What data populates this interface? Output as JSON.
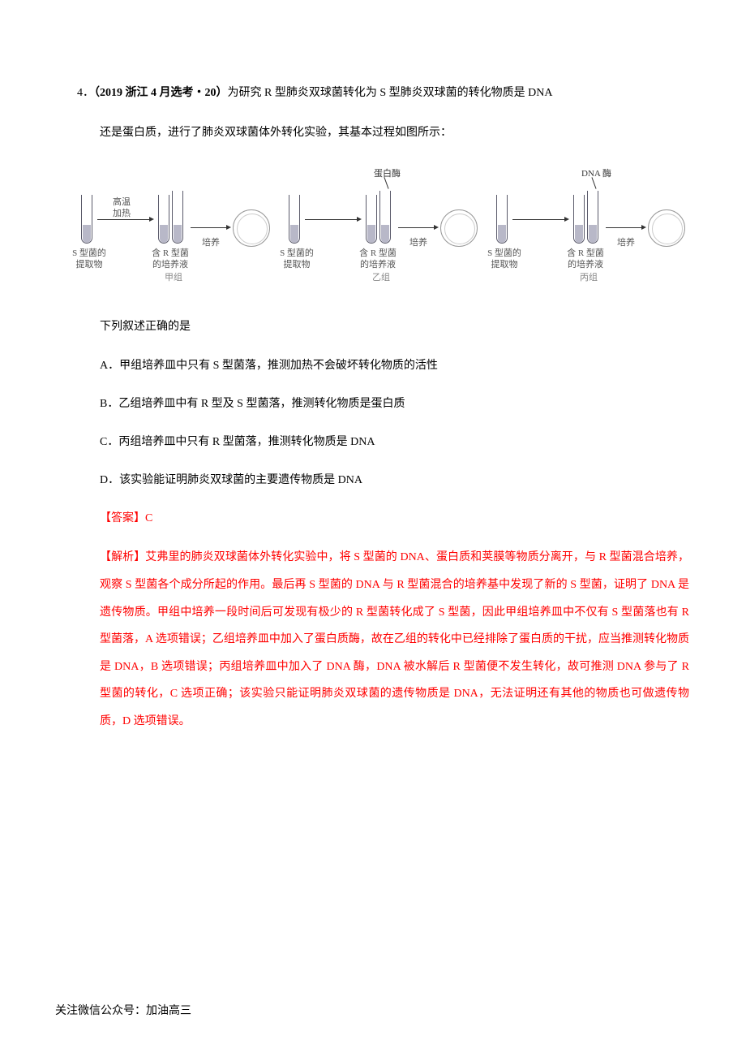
{
  "question": {
    "number": "4．",
    "source": "（2019 浙江 4 月选考・20）",
    "text_part1": "为研究 R 型肺炎双球菌转化为 S 型肺炎双球菌的转化物质是 DNA",
    "text_part2": "还是蛋白质，进行了肺炎双球菌体外转化实验，其基本过程如图所示："
  },
  "diagram": {
    "groups": [
      {
        "extract_label": "S 型菌的\n提取物",
        "heat_label": "高温\n加热",
        "medium_label": "含 R 型菌\n的培养液",
        "culture_label": "培养",
        "group_name": "甲组",
        "enzyme": "",
        "show_enzyme": false
      },
      {
        "extract_label": "S 型菌的\n提取物",
        "heat_label": "",
        "medium_label": "含 R 型菌\n的培养液",
        "culture_label": "培养",
        "group_name": "乙组",
        "enzyme": "蛋白酶",
        "show_enzyme": true
      },
      {
        "extract_label": "S 型菌的\n提取物",
        "heat_label": "",
        "medium_label": "含 R 型菌\n的培养液",
        "culture_label": "培养",
        "group_name": "丙组",
        "enzyme": "DNA 酶",
        "show_enzyme": true
      }
    ]
  },
  "stem": "下列叙述正确的是",
  "options": {
    "A": "A．甲组培养皿中只有 S 型菌落，推测加热不会破坏转化物质的活性",
    "B": "B．乙组培养皿中有 R 型及 S 型菌落，推测转化物质是蛋白质",
    "C": "C．丙组培养皿中只有 R 型菌落，推测转化物质是 DNA",
    "D": "D．该实验能证明肺炎双球菌的主要遗传物质是 DNA"
  },
  "answer": "【答案】C",
  "analysis": "【解析】艾弗里的肺炎双球菌体外转化实验中，将 S 型菌的 DNA、蛋白质和荚膜等物质分离开，与 R 型菌混合培养，观察 S 型菌各个成分所起的作用。最后再 S 型菌的 DNA 与 R 型菌混合的培养基中发现了新的 S 型菌，证明了 DNA 是遗传物质。甲组中培养一段时间后可发现有极少的 R 型菌转化成了 S 型菌，因此甲组培养皿中不仅有 S 型菌落也有 R 型菌落，A 选项错误；乙组培养皿中加入了蛋白质酶，故在乙组的转化中已经排除了蛋白质的干扰，应当推测转化物质是 DNA，B 选项错误；丙组培养皿中加入了 DNA 酶，DNA 被水解后 R 型菌便不发生转化，故可推测 DNA 参与了 R 型菌的转化，C 选项正确；该实验只能证明肺炎双球菌的遗传物质是 DNA，无法证明还有其他的物质也可做遗传物质，D 选项错误。",
  "footer": "关注微信公众号：加油高三"
}
